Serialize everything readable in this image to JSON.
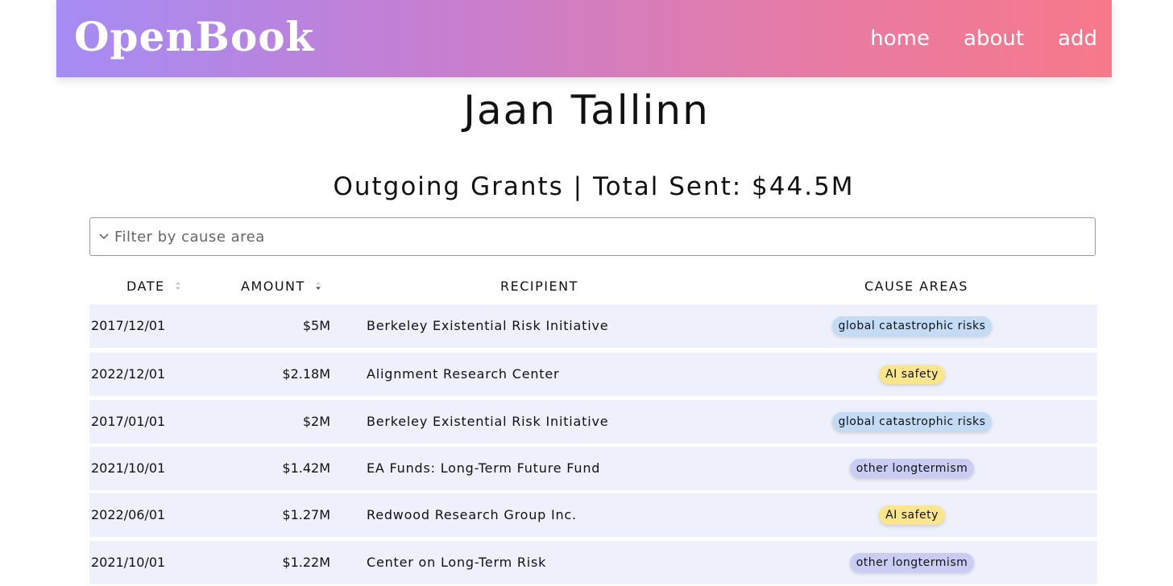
{
  "nav": {
    "logo": "OpenBook",
    "links": [
      "home",
      "about",
      "add"
    ]
  },
  "page": {
    "title": "Jaan Tallinn",
    "section_title": "Outgoing Grants | Total Sent: $44.5M"
  },
  "filter": {
    "placeholder": "Filter by cause area"
  },
  "table": {
    "headers": {
      "date": "DATE",
      "amount": "AMOUNT",
      "recipient": "RECIPIENT",
      "cause_areas": "CAUSE AREAS"
    },
    "rows": [
      {
        "date": "2017/12/01",
        "amount": "$5M",
        "recipient": "Berkeley Existential Risk Initiative",
        "cause": "global catastrophic risks",
        "cause_type": "gcr"
      },
      {
        "date": "2022/12/01",
        "amount": "$2.18M",
        "recipient": "Alignment Research Center",
        "cause": "AI safety",
        "cause_type": "ai"
      },
      {
        "date": "2017/01/01",
        "amount": "$2M",
        "recipient": "Berkeley Existential Risk Initiative",
        "cause": "global catastrophic risks",
        "cause_type": "gcr"
      },
      {
        "date": "2021/10/01",
        "amount": "$1.42M",
        "recipient": "EA Funds: Long-Term Future Fund",
        "cause": "other longtermism",
        "cause_type": "lt"
      },
      {
        "date": "2022/06/01",
        "amount": "$1.27M",
        "recipient": "Redwood Research Group Inc.",
        "cause": "AI safety",
        "cause_type": "ai"
      },
      {
        "date": "2021/10/01",
        "amount": "$1.22M",
        "recipient": "Center on Long-Term Risk",
        "cause": "other longtermism",
        "cause_type": "lt"
      }
    ]
  },
  "colors": {
    "gradient_start": "#a58cf3",
    "gradient_end": "#f7798a",
    "row_bg": "#eef0fb",
    "tag_gcr": "#c4dbf6",
    "tag_ai": "#fbe58d",
    "tag_lt": "#c9cdf4"
  }
}
